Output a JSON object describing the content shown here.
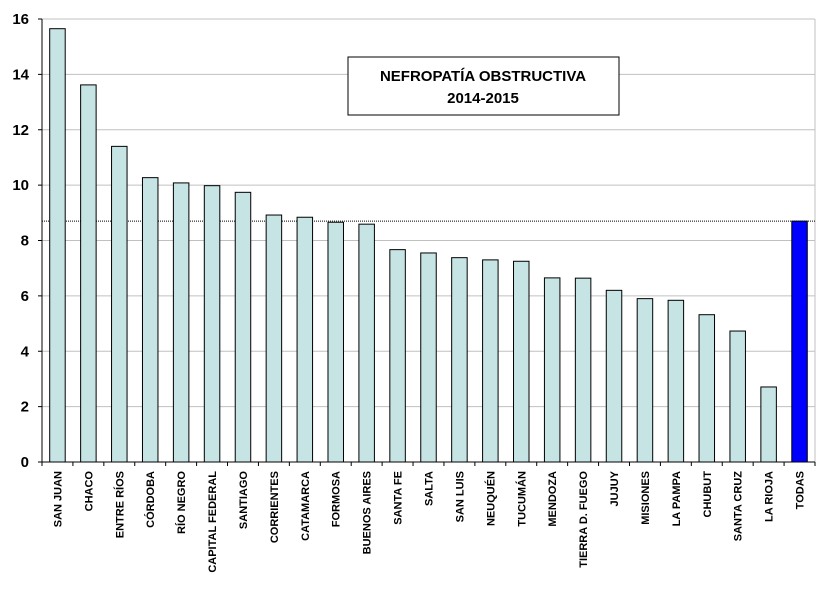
{
  "chart_data": {
    "type": "bar",
    "title": "NEFROPATÍA OBSTRUCTIVA",
    "subtitle": "2014-2015",
    "categories": [
      "SAN JUAN",
      "CHACO",
      "ENTRE RÍOS",
      "CÓRDOBA",
      "RÍO NEGRO",
      "CAPITAL FEDERAL",
      "SANTIAGO",
      "CORRIENTES",
      "CATAMARCA",
      "FORMOSA",
      "BUENOS AIRES",
      "SANTA FE",
      "SALTA",
      "SAN LUIS",
      "NEUQUÉN",
      "TUCUMÁN",
      "MENDOZA",
      "TIERRA  D. FUEGO",
      "JUJUY",
      "MISIONES",
      "LA PAMPA",
      "CHUBUT",
      "SANTA CRUZ",
      "LA RIOJA",
      "TODAS"
    ],
    "values": [
      15.65,
      13.62,
      11.4,
      10.27,
      10.08,
      9.98,
      9.74,
      8.92,
      8.84,
      8.66,
      8.59,
      7.67,
      7.55,
      7.38,
      7.3,
      7.25,
      6.65,
      6.64,
      6.2,
      5.9,
      5.84,
      5.32,
      4.73,
      2.71,
      8.7
    ],
    "highlight_category": "TODAS",
    "reference_line": 8.7,
    "ylim": [
      0,
      16
    ],
    "yticks": [
      0,
      2,
      4,
      6,
      8,
      10,
      12,
      14,
      16
    ],
    "xlabel": "",
    "ylabel": "",
    "grid": true,
    "colors": {
      "bar": "#c6e4e4",
      "highlight": "#0000ff",
      "grid": "#c0c0c0",
      "axis": "#000000"
    }
  }
}
